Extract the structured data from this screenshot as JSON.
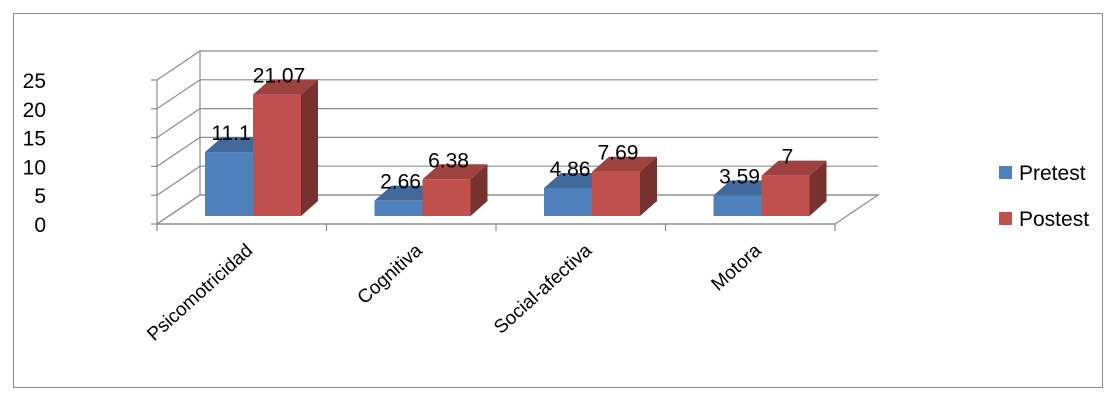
{
  "chart_data": {
    "type": "bar",
    "style": "3d-clustered-column",
    "categories": [
      "Psicomotricidad",
      "Cognitiva",
      "Social-afectiva",
      "Motora"
    ],
    "series": [
      {
        "name": "Pretest",
        "values": [
          11.1,
          2.66,
          4.86,
          3.59
        ],
        "labels": [
          "11.1",
          "2.66",
          "4.86",
          "3.59"
        ],
        "color": "#4f81bd"
      },
      {
        "name": "Postest",
        "values": [
          21.07,
          6.38,
          7.69,
          7
        ],
        "labels": [
          "21.07",
          "6.38",
          "7.69",
          "7"
        ],
        "color": "#c0504d"
      }
    ],
    "ylim": [
      0,
      25
    ],
    "yticks": [
      "0",
      "5",
      "10",
      "15",
      "20",
      "25"
    ],
    "title": "",
    "xlabel": "",
    "ylabel": "",
    "grid": true,
    "legend_position": "right"
  }
}
